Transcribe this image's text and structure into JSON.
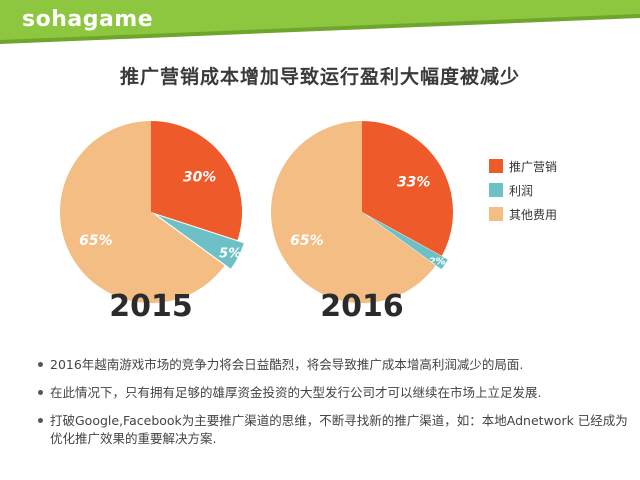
{
  "brand": {
    "logo_text": "sohagame",
    "accent": "#8dc63f",
    "accent_dark": "#6fa52d"
  },
  "title": "推广营销成本增加导致运行盈利大幅度被减少",
  "chart_data": {
    "type": "pie",
    "series_names": [
      "推广营销",
      "利润",
      "其他费用"
    ],
    "colors": [
      "#ef5a2a",
      "#6cc0c6",
      "#f3bd83"
    ],
    "charts": [
      {
        "label": "2015",
        "values": [
          30,
          5,
          65
        ],
        "value_labels": [
          "30%",
          "5%",
          "65%"
        ]
      },
      {
        "label": "2016",
        "values": [
          33,
          2,
          65
        ],
        "value_labels": [
          "33%",
          "2%",
          "65%"
        ]
      }
    ],
    "legend_position": "right"
  },
  "bullets": [
    "2016年越南游戏市场的竞争力将会日益酷烈，将会导致推广成本增高利润减少的局面.",
    "在此情况下，只有拥有足够的雄厚资金投资的大型发行公司才可以继续在市场上立足发展.",
    "打破Google,Facebook为主要推广渠道的思维，不断寻找新的推广渠道，如：本地Adnetwork 已经成为优化推广效果的重要解决方案."
  ]
}
